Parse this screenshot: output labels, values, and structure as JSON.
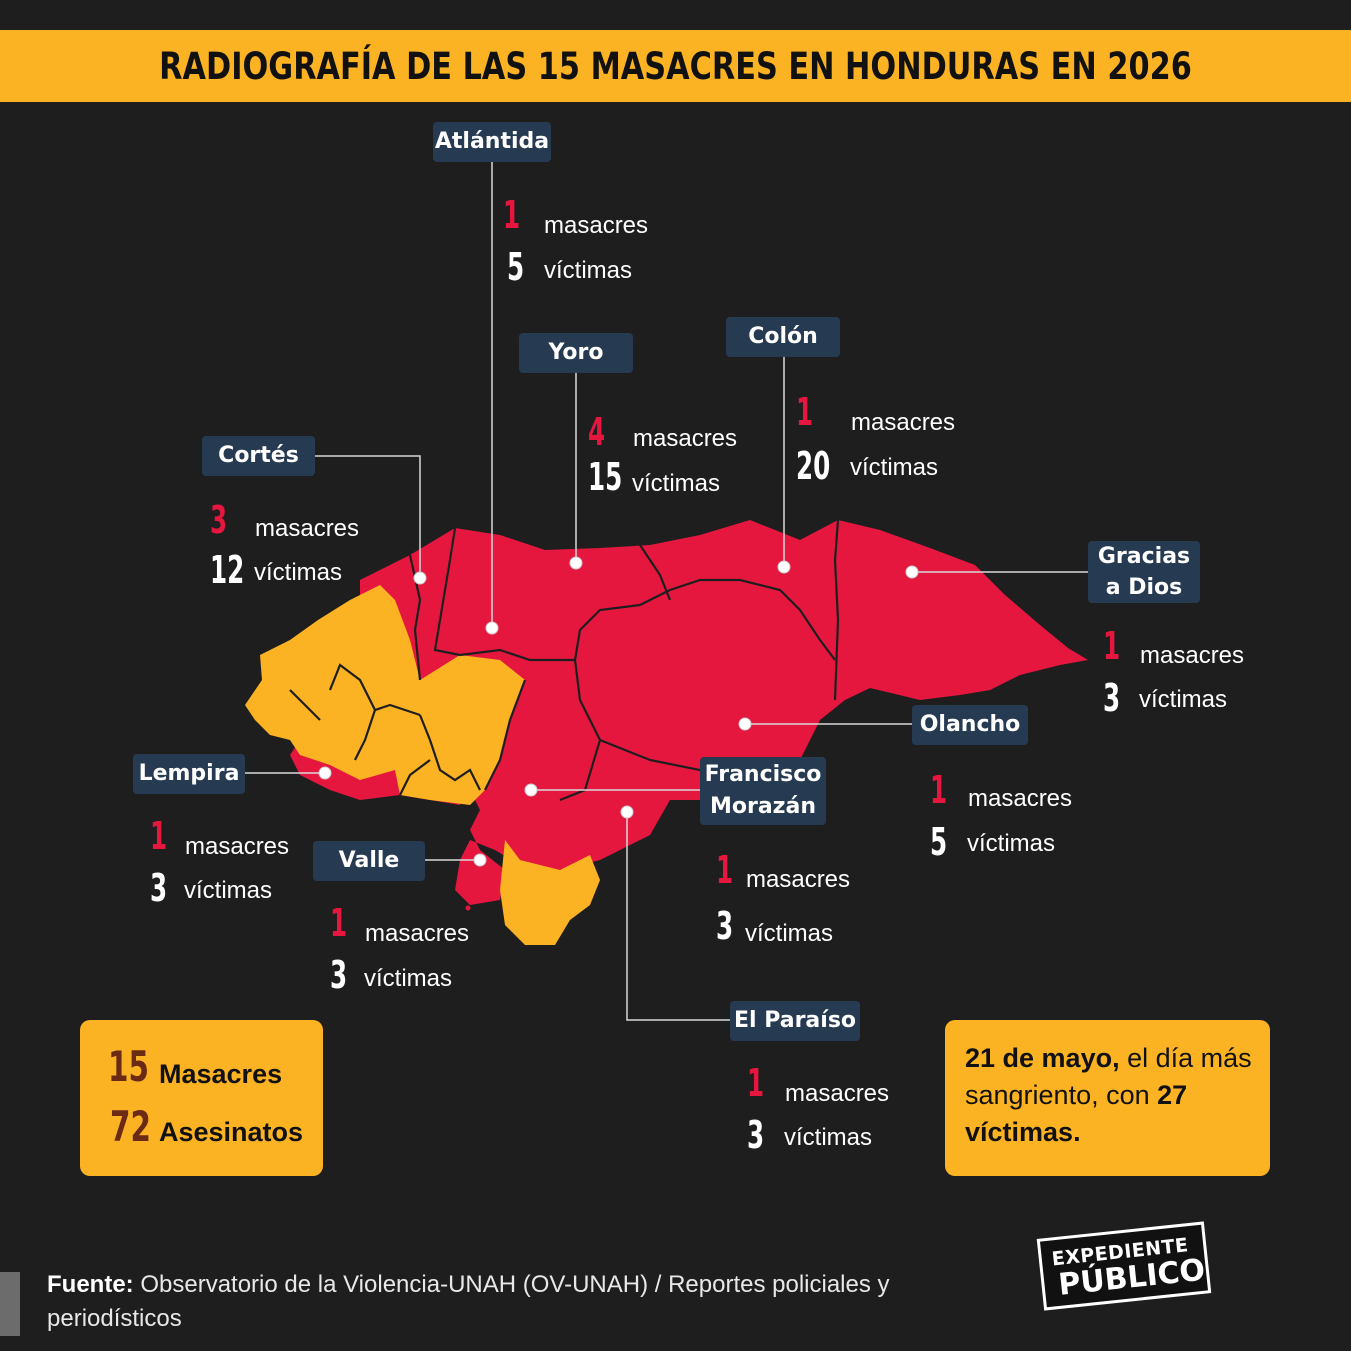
{
  "title": "RADIOGRAFÍA DE LAS 15 MASACRES EN HONDURAS EN 2026",
  "colors": {
    "accent": "#fbb323",
    "affected": "#e5173f",
    "background": "#1f1e1e",
    "label_bg": "#263a52"
  },
  "word_masacres": "masacres",
  "word_victimas": "víctimas",
  "departments": {
    "atlantida": {
      "name": "Atlántida",
      "masacres": "1",
      "victimas": "5"
    },
    "yoro": {
      "name": "Yoro",
      "masacres": "4",
      "victimas": "15"
    },
    "colon": {
      "name": "Colón",
      "masacres": "1",
      "victimas": "20"
    },
    "cortes": {
      "name": "Cortés",
      "masacres": "3",
      "victimas": "12"
    },
    "gracias_a_dios": {
      "name_line1": "Gracias",
      "name_line2": "a Dios",
      "masacres": "1",
      "victimas": "3"
    },
    "olancho": {
      "name": "Olancho",
      "masacres": "1",
      "victimas": "5"
    },
    "lempira": {
      "name": "Lempira",
      "masacres": "1",
      "victimas": "3"
    },
    "francisco_morazan": {
      "name_line1": "Francisco",
      "name_line2": "Morazán",
      "masacres": "1",
      "victimas": "3"
    },
    "valle": {
      "name": "Valle",
      "masacres": "1",
      "victimas": "3"
    },
    "el_paraiso": {
      "name": "El Paraíso",
      "masacres": "1",
      "victimas": "3"
    }
  },
  "totals": {
    "masacres_num": "15",
    "masacres_label": "Masacres",
    "asesinatos_num": "72",
    "asesinatos_label": "Asesinatos"
  },
  "highlight": {
    "date": "21 de mayo,",
    "text1": " el día más sangriento, con ",
    "count": "27",
    "text2": "víctimas."
  },
  "source": {
    "label": "Fuente:",
    "text": " Observatorio de la Violencia-UNAH (OV-UNAH) / Reportes policiales y periodísticos"
  },
  "logo": {
    "line1": "EXPEDIENTE",
    "line2": "PÚBLICO"
  }
}
